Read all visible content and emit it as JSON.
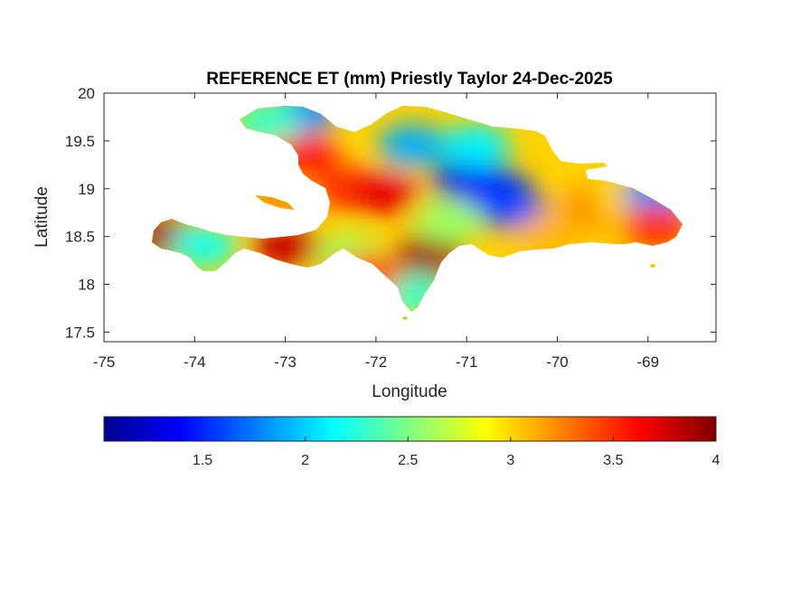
{
  "chart_data": {
    "type": "heatmap",
    "title": "REFERENCE ET (mm) Priestly Taylor 24-Dec-2025",
    "xlabel": "Longitude",
    "ylabel": "Latitude",
    "xlim": [
      -75,
      -68.25
    ],
    "ylim": [
      17.4,
      20
    ],
    "xticks": [
      -75,
      -74,
      -73,
      -72,
      -71,
      -70,
      -69
    ],
    "xtick_labels": [
      "-75",
      "-74",
      "-73",
      "-72",
      "-71",
      "-70",
      "-69"
    ],
    "yticks": [
      17.5,
      18,
      18.5,
      19,
      19.5,
      20
    ],
    "ytick_labels": [
      "17.5",
      "18",
      "18.5",
      "19",
      "19.5",
      "20"
    ],
    "colorbar": {
      "orientation": "horizontal",
      "colormap": "jet",
      "range": [
        1.02,
        4
      ],
      "ticks": [
        1.5,
        2,
        2.5,
        3,
        3.5,
        4
      ],
      "tick_labels": [
        "1.5",
        "2",
        "2.5",
        "3",
        "3.5",
        "4"
      ]
    },
    "regions": [
      {
        "lon": -72.3,
        "lat": 19.0,
        "value": 3.5
      },
      {
        "lon": -71.9,
        "lat": 18.95,
        "value": 3.7
      },
      {
        "lon": -72.8,
        "lat": 19.35,
        "value": 3.6
      },
      {
        "lon": -71.0,
        "lat": 19.1,
        "value": 1.3
      },
      {
        "lon": -70.7,
        "lat": 19.0,
        "value": 1.4
      },
      {
        "lon": -70.5,
        "lat": 18.8,
        "value": 1.6
      },
      {
        "lon": -71.6,
        "lat": 19.45,
        "value": 1.9
      },
      {
        "lon": -70.9,
        "lat": 19.45,
        "value": 2.1
      },
      {
        "lon": -72.8,
        "lat": 19.8,
        "value": 1.8
      },
      {
        "lon": -73.2,
        "lat": 19.7,
        "value": 2.3
      },
      {
        "lon": -69.6,
        "lat": 18.8,
        "value": 3.2
      },
      {
        "lon": -69.2,
        "lat": 18.9,
        "value": 3.0
      },
      {
        "lon": -68.9,
        "lat": 18.95,
        "value": 1.8
      },
      {
        "lon": -68.9,
        "lat": 18.6,
        "value": 3.5
      },
      {
        "lon": -71.4,
        "lat": 18.3,
        "value": 3.9
      },
      {
        "lon": -71.6,
        "lat": 17.9,
        "value": 2.3
      },
      {
        "lon": -72.3,
        "lat": 18.3,
        "value": 2.6
      },
      {
        "lon": -71.2,
        "lat": 18.65,
        "value": 2.6
      },
      {
        "lon": -73.0,
        "lat": 18.4,
        "value": 3.8
      },
      {
        "lon": -74.3,
        "lat": 18.5,
        "value": 3.9
      },
      {
        "lon": -73.9,
        "lat": 18.4,
        "value": 2.2
      },
      {
        "lon": -72.1,
        "lat": 18.1,
        "value": 3.4
      },
      {
        "lon": -73.1,
        "lat": 18.95,
        "value": 3.2
      },
      {
        "lon": -70.1,
        "lat": 18.5,
        "value": 3.1
      }
    ]
  }
}
